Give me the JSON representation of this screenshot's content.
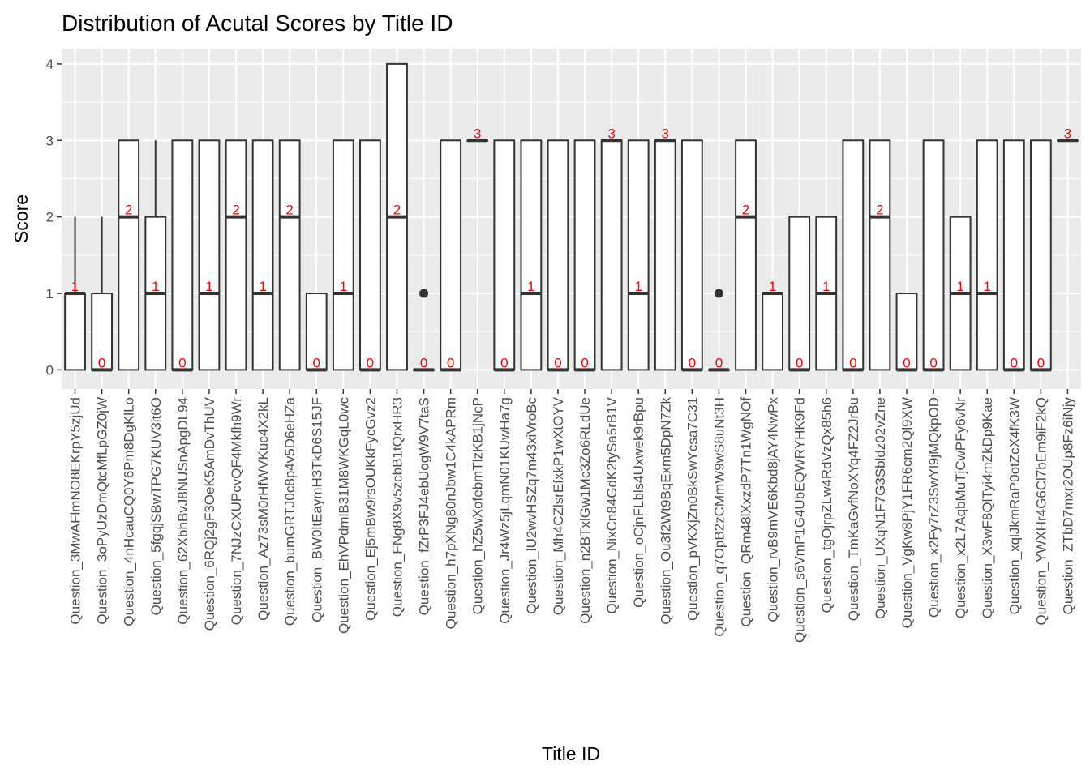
{
  "chart_data": {
    "type": "boxplot",
    "title": "Distribution of Acutal Scores by Title ID",
    "xlabel": "Title ID",
    "ylabel": "Score",
    "ylim": [
      -0.25,
      4.2
    ],
    "yticks": [
      0,
      1,
      2,
      3,
      4
    ],
    "grid": true,
    "legend": "none",
    "colors": {
      "panel": "#ebebeb",
      "grid": "#ffffff",
      "box_fill": "#ffffff",
      "box_stroke": "#333333",
      "median_label": "#ff0000",
      "tick_text": "#4d4d4d"
    },
    "boxes": [
      {
        "category": "Question_3MwAFlmNO8EKrpY5zjUd",
        "lower": 0,
        "q1": 0,
        "median": 1,
        "q3": 1,
        "upper": 2,
        "outliers": [],
        "label": "1"
      },
      {
        "category": "Question_3oPyUzDmQtcMfLpGZ0jW",
        "lower": 0,
        "q1": 0,
        "median": 0,
        "q3": 1,
        "upper": 2,
        "outliers": [],
        "label": "0"
      },
      {
        "category": "Question_4nHcauCQ0Y6Pm8DgKlLo",
        "lower": 0,
        "q1": 0,
        "median": 2,
        "q3": 3,
        "upper": 3,
        "outliers": [],
        "label": "2"
      },
      {
        "category": "Question_5fgqjSBwTPG7KUV3it6O",
        "lower": 0,
        "q1": 0,
        "median": 1,
        "q3": 2,
        "upper": 3,
        "outliers": [],
        "label": "1"
      },
      {
        "category": "Question_62XbhBvJ8NUSnApgDL94",
        "lower": 0,
        "q1": 0,
        "median": 0,
        "q3": 3,
        "upper": 3,
        "outliers": [],
        "label": "0"
      },
      {
        "category": "Question_6RQj2gF3OeK5AmDvThUV",
        "lower": 0,
        "q1": 0,
        "median": 1,
        "q3": 3,
        "upper": 3,
        "outliers": [],
        "label": "1"
      },
      {
        "category": "Question_7NJzCXUPcvQF4Mkfh9Wr",
        "lower": 0,
        "q1": 0,
        "median": 2,
        "q3": 3,
        "upper": 3,
        "outliers": [],
        "label": "2"
      },
      {
        "category": "Question_Az73sM0rHfWVKuc4X2kL",
        "lower": 0,
        "q1": 0,
        "median": 1,
        "q3": 3,
        "upper": 3,
        "outliers": [],
        "label": "1"
      },
      {
        "category": "Question_bumGRTJ0c8p4v5D6eHZa",
        "lower": 0,
        "q1": 0,
        "median": 2,
        "q3": 3,
        "upper": 3,
        "outliers": [],
        "label": "2"
      },
      {
        "category": "Question_BW0ltEaymH3TkD6S15JF",
        "lower": 0,
        "q1": 0,
        "median": 0,
        "q3": 1,
        "upper": 1,
        "outliers": [],
        "label": "0"
      },
      {
        "category": "Question_EhVPdmlB31M8WKGqL0wc",
        "lower": 0,
        "q1": 0,
        "median": 1,
        "q3": 3,
        "upper": 3,
        "outliers": [],
        "label": "1"
      },
      {
        "category": "Question_Ej5mBw9rsOUKkFycGvz2",
        "lower": 0,
        "q1": 0,
        "median": 0,
        "q3": 3,
        "upper": 3,
        "outliers": [],
        "label": "0"
      },
      {
        "category": "Question_FNg8X9v5zcbB1tQrxHR3",
        "lower": 0,
        "q1": 0,
        "median": 2,
        "q3": 4,
        "upper": 4,
        "outliers": [],
        "label": "2"
      },
      {
        "category": "Question_fZrP3FJ4ebUogW9V7taS",
        "lower": 0,
        "q1": 0,
        "median": 0,
        "q3": 0,
        "upper": 0,
        "outliers": [
          1
        ],
        "label": "0"
      },
      {
        "category": "Question_h7pXNg80nJbw1C4kAPRm",
        "lower": 0,
        "q1": 0,
        "median": 0,
        "q3": 3,
        "upper": 3,
        "outliers": [],
        "label": "0"
      },
      {
        "category": "Question_hZ5wXofebmTlzKB1jNcP",
        "lower": 3,
        "q1": 3,
        "median": 3,
        "q3": 3,
        "upper": 3,
        "outliers": [],
        "label": "3"
      },
      {
        "category": "Question_Jr4Wz5jLqmN01KUwHa7g",
        "lower": 0,
        "q1": 0,
        "median": 0,
        "q3": 3,
        "upper": 3,
        "outliers": [],
        "label": "0"
      },
      {
        "category": "Question_lU2wvHSZq7m43xiVroBc",
        "lower": 0,
        "q1": 0,
        "median": 1,
        "q3": 3,
        "upper": 3,
        "outliers": [],
        "label": "1"
      },
      {
        "category": "Question_Mh4CZlsrEfxkP1wXtOYV",
        "lower": 0,
        "q1": 0,
        "median": 0,
        "q3": 3,
        "upper": 3,
        "outliers": [],
        "label": "0"
      },
      {
        "category": "Question_n2BTxlGw1Mc3Zo6RLdUe",
        "lower": 0,
        "q1": 0,
        "median": 0,
        "q3": 3,
        "upper": 3,
        "outliers": [],
        "label": "0"
      },
      {
        "category": "Question_NixCn84GdK2tySa5rB1V",
        "lower": 0,
        "q1": 0,
        "median": 3,
        "q3": 3,
        "upper": 3,
        "outliers": [],
        "label": "3"
      },
      {
        "category": "Question_oCjnFLbls4Uxwek9rBpu",
        "lower": 0,
        "q1": 0,
        "median": 1,
        "q3": 3,
        "upper": 3,
        "outliers": [],
        "label": "1"
      },
      {
        "category": "Question_Ou3f2Wt9BqExm5DpN7Zk",
        "lower": 0,
        "q1": 0,
        "median": 3,
        "q3": 3,
        "upper": 3,
        "outliers": [],
        "label": "3"
      },
      {
        "category": "Question_pVKXjZn0BkSwYcsa7C31",
        "lower": 0,
        "q1": 0,
        "median": 0,
        "q3": 3,
        "upper": 3,
        "outliers": [],
        "label": "0"
      },
      {
        "category": "Question_q7OpB2zCMmW9wS8uNt3H",
        "lower": 0,
        "q1": 0,
        "median": 0,
        "q3": 0,
        "upper": 0,
        "outliers": [
          1
        ],
        "label": "0"
      },
      {
        "category": "Question_QRm48lXxzdP7Tn1WgNOf",
        "lower": 0,
        "q1": 0,
        "median": 2,
        "q3": 3,
        "upper": 3,
        "outliers": [],
        "label": "2"
      },
      {
        "category": "Question_rvB9mVE6Kbd8jAY4NwPx",
        "lower": 0,
        "q1": 0,
        "median": 1,
        "q3": 1,
        "upper": 1,
        "outliers": [],
        "label": "1"
      },
      {
        "category": "Question_s6VmP1G4UbEQWRYHK9Fd",
        "lower": 0,
        "q1": 0,
        "median": 0,
        "q3": 2,
        "upper": 2,
        "outliers": [],
        "label": "0"
      },
      {
        "category": "Question_tgOjrpZLw4RdVzQx85h6",
        "lower": 0,
        "q1": 0,
        "median": 1,
        "q3": 2,
        "upper": 2,
        "outliers": [],
        "label": "1"
      },
      {
        "category": "Question_TmKaGvfNoXYq4FZ2JrBu",
        "lower": 0,
        "q1": 0,
        "median": 0,
        "q3": 3,
        "upper": 3,
        "outliers": [],
        "label": "0"
      },
      {
        "category": "Question_UXqN1F7G3Sbldz02vZne",
        "lower": 0,
        "q1": 0,
        "median": 2,
        "q3": 3,
        "upper": 3,
        "outliers": [],
        "label": "2"
      },
      {
        "category": "Question_VgKw8PjY1FR6cm2Ql9XW",
        "lower": 0,
        "q1": 0,
        "median": 0,
        "q3": 1,
        "upper": 1,
        "outliers": [],
        "label": "0"
      },
      {
        "category": "Question_x2Fy7rZ3SwYl9jMQkpOD",
        "lower": 0,
        "q1": 0,
        "median": 0,
        "q3": 3,
        "upper": 3,
        "outliers": [],
        "label": "0"
      },
      {
        "category": "Question_x2L7AqbMuTjCwPFy6vNr",
        "lower": 0,
        "q1": 0,
        "median": 1,
        "q3": 2,
        "upper": 2,
        "outliers": [],
        "label": "1"
      },
      {
        "category": "Question_X3wF8QlTyi4mZkDp9Kae",
        "lower": 0,
        "q1": 0,
        "median": 1,
        "q3": 3,
        "upper": 3,
        "outliers": [],
        "label": "1"
      },
      {
        "category": "Question_xqlJkmRaP0otZcX4fK3W",
        "lower": 0,
        "q1": 0,
        "median": 0,
        "q3": 3,
        "upper": 3,
        "outliers": [],
        "label": "0"
      },
      {
        "category": "Question_YWXHr4G6Cl7bEm9iF2kQ",
        "lower": 0,
        "q1": 0,
        "median": 0,
        "q3": 3,
        "upper": 3,
        "outliers": [],
        "label": "0"
      },
      {
        "category": "Question_ZTbD7mxr2OUp8Fz6iNjy",
        "lower": 3,
        "q1": 3,
        "median": 3,
        "q3": 3,
        "upper": 3,
        "outliers": [],
        "label": "3"
      }
    ]
  }
}
